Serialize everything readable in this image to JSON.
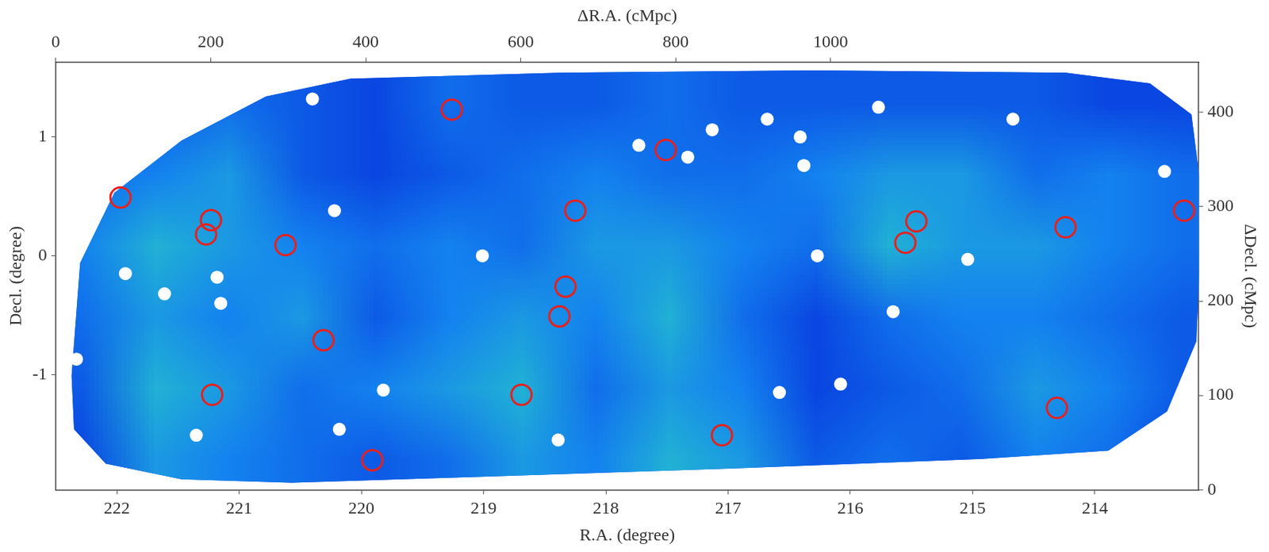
{
  "chart_data": {
    "type": "scatter",
    "x_label": "R.A. (degree)",
    "x2_label": "ΔR.A. (cMpc)",
    "y_label": "Decl. (degree)",
    "y2_label": "ΔDecl. (cMpc)",
    "xlim": [
      222.5,
      213.15
    ],
    "xticks": [
      222,
      221,
      220,
      219,
      218,
      217,
      216,
      215,
      214
    ],
    "x2lim": [
      0,
      1475
    ],
    "x2ticks": [
      0,
      200,
      400,
      600,
      800,
      1000
    ],
    "ylim": [
      -1.97,
      1.63
    ],
    "yticks": [
      -1,
      0,
      1
    ],
    "y2lim": [
      0,
      453
    ],
    "y2ticks": [
      0,
      100,
      200,
      300,
      400
    ],
    "grid": false,
    "circles": {
      "color": "#e8201c",
      "ra": [
        221.97,
        221.23,
        221.27,
        220.62,
        220.31,
        221.22,
        219.91,
        219.26,
        218.69,
        218.33,
        218.38,
        218.25,
        217.51,
        217.05,
        215.46,
        215.55,
        214.24,
        214.31,
        213.27
      ],
      "dec": [
        0.49,
        0.3,
        0.18,
        0.09,
        -0.71,
        -1.17,
        -1.72,
        1.23,
        -1.17,
        -0.26,
        -0.51,
        0.38,
        0.89,
        -1.51,
        0.29,
        0.11,
        0.24,
        -1.28,
        0.38
      ]
    },
    "masks": {
      "color": "#ffffff",
      "ra": [
        220.4,
        220.22,
        219.01,
        221.93,
        222.33,
        221.61,
        221.15,
        221.18,
        219.82,
        220.18,
        221.35,
        218.39,
        217.73,
        217.33,
        217.13,
        216.68,
        216.41,
        216.38,
        216.27,
        215.77,
        214.67,
        215.04,
        215.65,
        216.58,
        216.08,
        213.43
      ],
      "dec": [
        1.32,
        0.38,
        0.0,
        -0.15,
        -0.87,
        -0.32,
        -0.4,
        -0.18,
        -1.13,
        -1.46,
        -1.51,
        -1.55,
        0.93,
        0.83,
        1.06,
        1.15,
        1.0,
        0.76,
        0.0,
        1.25,
        1.15,
        -0.03,
        -0.47,
        -1.15,
        -1.08,
        0.71
      ]
    },
    "footprint": {
      "ra": [
        222.37,
        222.3,
        222.02,
        221.47,
        220.78,
        220.09,
        218.37,
        216.3,
        214.24,
        213.55,
        213.21,
        213.12,
        213.17,
        213.41,
        213.89,
        214.93,
        216.99,
        219.06,
        220.57,
        221.47,
        222.09,
        222.35
      ],
      "dec": [
        -1.01,
        -0.06,
        0.53,
        0.97,
        1.34,
        1.49,
        1.54,
        1.56,
        1.54,
        1.45,
        1.19,
        0.46,
        -0.72,
        -1.31,
        -1.64,
        -1.71,
        -1.79,
        -1.86,
        -1.91,
        -1.88,
        -1.75,
        -1.46
      ]
    },
    "density": {
      "ra_edges": [
        222.6,
        222.0,
        221.4,
        220.8,
        220.2,
        219.6,
        219.0,
        218.4,
        217.8,
        217.2,
        216.6,
        216.0,
        215.4,
        214.8,
        214.2,
        213.6,
        213.0
      ],
      "dec_edges": [
        -2.0,
        -1.4,
        -0.8,
        -0.2,
        0.4,
        1.0,
        1.6
      ],
      "values": [
        [
          0.3,
          0.5,
          0.45,
          0.4,
          0.35,
          0.4,
          0.5,
          0.45,
          0.55,
          0.5,
          0.35,
          0.4,
          0.35,
          0.45,
          0.4,
          0.3
        ],
        [
          0.35,
          0.55,
          0.5,
          0.4,
          0.45,
          0.5,
          0.55,
          0.4,
          0.5,
          0.45,
          0.3,
          0.35,
          0.4,
          0.5,
          0.45,
          0.35
        ],
        [
          0.4,
          0.5,
          0.45,
          0.5,
          0.35,
          0.45,
          0.5,
          0.45,
          0.55,
          0.4,
          0.3,
          0.4,
          0.45,
          0.45,
          0.4,
          0.35
        ],
        [
          0.45,
          0.55,
          0.5,
          0.45,
          0.4,
          0.45,
          0.4,
          0.5,
          0.5,
          0.45,
          0.4,
          0.55,
          0.5,
          0.5,
          0.45,
          0.4
        ],
        [
          0.4,
          0.45,
          0.5,
          0.35,
          0.3,
          0.35,
          0.4,
          0.45,
          0.4,
          0.4,
          0.45,
          0.5,
          0.5,
          0.4,
          0.45,
          0.4
        ],
        [
          0.3,
          0.35,
          0.4,
          0.35,
          0.3,
          0.4,
          0.35,
          0.35,
          0.4,
          0.35,
          0.35,
          0.35,
          0.35,
          0.35,
          0.3,
          0.3
        ]
      ]
    }
  }
}
